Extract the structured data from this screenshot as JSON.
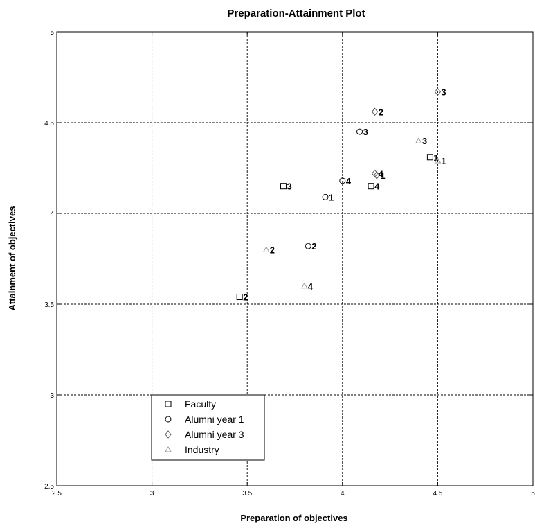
{
  "chart_data": {
    "type": "scatter",
    "title": "Preparation-Attainment Plot",
    "xlabel": "Preparation of objectives",
    "ylabel": "Attainment of objectives",
    "xlim": [
      2.5,
      5
    ],
    "ylim": [
      2.5,
      5
    ],
    "xticks": [
      "2.5",
      "3",
      "3.5",
      "4",
      "4.5",
      "5"
    ],
    "yticks": [
      "2.5",
      "3",
      "3.5",
      "4",
      "4.5",
      "5"
    ],
    "grid": true,
    "legend_position": "lower-left",
    "series": [
      {
        "name": "Faculty",
        "marker": "square",
        "color": "#000000",
        "points": [
          {
            "x": 4.46,
            "y": 4.31,
            "label": "1"
          },
          {
            "x": 3.46,
            "y": 3.54,
            "label": "2"
          },
          {
            "x": 3.69,
            "y": 4.15,
            "label": "3"
          },
          {
            "x": 4.15,
            "y": 4.15,
            "label": "4"
          }
        ]
      },
      {
        "name": "Alumni year 1",
        "marker": "circle",
        "color": "#000000",
        "points": [
          {
            "x": 3.91,
            "y": 4.09,
            "label": "1"
          },
          {
            "x": 3.82,
            "y": 3.82,
            "label": "2"
          },
          {
            "x": 4.09,
            "y": 4.45,
            "label": "3"
          },
          {
            "x": 4.0,
            "y": 4.18,
            "label": "4"
          }
        ]
      },
      {
        "name": "Alumni year 3",
        "marker": "diamond",
        "color": "#555555",
        "points": [
          {
            "x": 4.18,
            "y": 4.21,
            "label": "1"
          },
          {
            "x": 4.17,
            "y": 4.56,
            "label": "2"
          },
          {
            "x": 4.5,
            "y": 4.67,
            "label": "3"
          },
          {
            "x": 4.17,
            "y": 4.22,
            "label": "4"
          }
        ]
      },
      {
        "name": "Industry",
        "marker": "triangle",
        "color": "#999999",
        "points": [
          {
            "x": 4.5,
            "y": 4.29,
            "label": "1"
          },
          {
            "x": 3.6,
            "y": 3.8,
            "label": "2"
          },
          {
            "x": 4.4,
            "y": 4.4,
            "label": "3"
          },
          {
            "x": 3.8,
            "y": 3.6,
            "label": "4"
          }
        ]
      }
    ]
  }
}
